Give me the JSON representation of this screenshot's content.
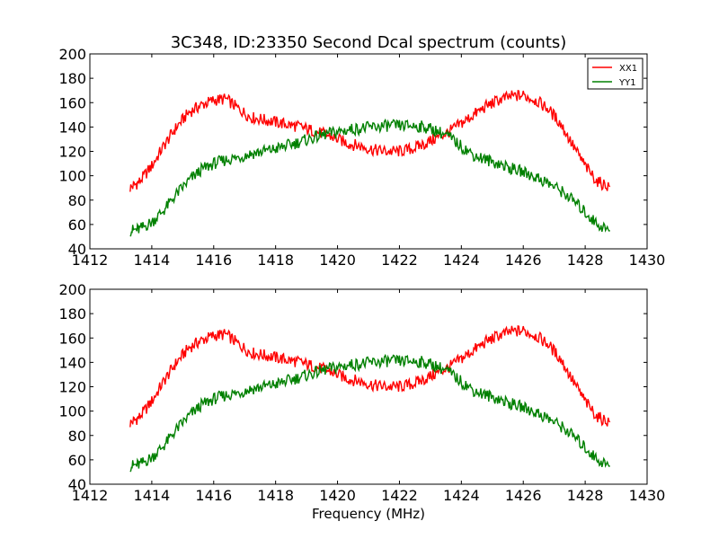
{
  "chart_data": [
    {
      "type": "line",
      "title": "3C348, ID:23350 Second Dcal spectrum (counts)",
      "xlabel": "",
      "ylabel": "",
      "xlim": [
        1412,
        1430
      ],
      "ylim": [
        40,
        200
      ],
      "xticks": [
        "1412",
        "1414",
        "1416",
        "1418",
        "1420",
        "1422",
        "1424",
        "1426",
        "1428",
        "1430"
      ],
      "yticks": [
        "40",
        "60",
        "80",
        "100",
        "120",
        "140",
        "160",
        "180",
        "200"
      ],
      "grid": false,
      "legend": {
        "position": "top-right",
        "entries": [
          "XX1",
          "YY1"
        ]
      },
      "x": [
        1413.3,
        1413.6,
        1414.0,
        1414.4,
        1414.8,
        1415.2,
        1415.6,
        1416.0,
        1416.4,
        1416.8,
        1417.2,
        1417.6,
        1418.0,
        1418.4,
        1418.8,
        1419.2,
        1419.6,
        1420.0,
        1420.4,
        1420.8,
        1421.2,
        1421.6,
        1422.0,
        1422.4,
        1422.8,
        1423.2,
        1423.6,
        1424.0,
        1424.4,
        1424.8,
        1425.2,
        1425.6,
        1426.0,
        1426.4,
        1426.8,
        1427.2,
        1427.6,
        1428.0,
        1428.4,
        1428.8
      ],
      "series": [
        {
          "name": "XX1",
          "color": "#ff0000",
          "values": [
            90,
            95,
            108,
            125,
            140,
            152,
            158,
            162,
            163,
            155,
            148,
            146,
            144,
            142,
            140,
            137,
            134,
            130,
            126,
            124,
            121,
            120,
            120,
            122,
            126,
            131,
            136,
            143,
            150,
            157,
            162,
            165,
            166,
            162,
            155,
            143,
            125,
            108,
            95,
            91
          ]
        },
        {
          "name": "YY1",
          "color": "#008000",
          "values": [
            55,
            56,
            62,
            72,
            85,
            96,
            105,
            110,
            113,
            115,
            118,
            120,
            122,
            125,
            128,
            131,
            134,
            136,
            138,
            139,
            140,
            141,
            141,
            141,
            140,
            137,
            132,
            124,
            117,
            113,
            110,
            106,
            103,
            99,
            94,
            88,
            80,
            70,
            60,
            55
          ]
        }
      ]
    },
    {
      "type": "line",
      "title": "",
      "xlabel": "Frequency (MHz)",
      "ylabel": "",
      "xlim": [
        1412,
        1430
      ],
      "ylim": [
        40,
        200
      ],
      "xticks": [
        "1412",
        "1414",
        "1416",
        "1418",
        "1420",
        "1422",
        "1424",
        "1426",
        "1428",
        "1430"
      ],
      "yticks": [
        "40",
        "60",
        "80",
        "100",
        "120",
        "140",
        "160",
        "180",
        "200"
      ],
      "grid": false,
      "x": [
        1413.3,
        1413.6,
        1414.0,
        1414.4,
        1414.8,
        1415.2,
        1415.6,
        1416.0,
        1416.4,
        1416.8,
        1417.2,
        1417.6,
        1418.0,
        1418.4,
        1418.8,
        1419.2,
        1419.6,
        1420.0,
        1420.4,
        1420.8,
        1421.2,
        1421.6,
        1422.0,
        1422.4,
        1422.8,
        1423.2,
        1423.6,
        1424.0,
        1424.4,
        1424.8,
        1425.2,
        1425.6,
        1426.0,
        1426.4,
        1426.8,
        1427.2,
        1427.6,
        1428.0,
        1428.4,
        1428.8
      ],
      "series": [
        {
          "color": "#ff0000",
          "values": [
            90,
            95,
            108,
            125,
            140,
            152,
            158,
            162,
            163,
            155,
            148,
            146,
            144,
            142,
            140,
            137,
            134,
            130,
            126,
            124,
            121,
            120,
            120,
            122,
            126,
            131,
            136,
            143,
            150,
            157,
            162,
            165,
            166,
            162,
            155,
            143,
            125,
            108,
            95,
            91
          ]
        },
        {
          "color": "#008000",
          "values": [
            55,
            56,
            62,
            72,
            85,
            96,
            105,
            110,
            113,
            115,
            118,
            120,
            122,
            125,
            128,
            131,
            134,
            136,
            138,
            139,
            140,
            141,
            141,
            141,
            140,
            137,
            132,
            124,
            117,
            113,
            110,
            106,
            103,
            99,
            94,
            88,
            80,
            70,
            60,
            55
          ]
        }
      ]
    }
  ]
}
